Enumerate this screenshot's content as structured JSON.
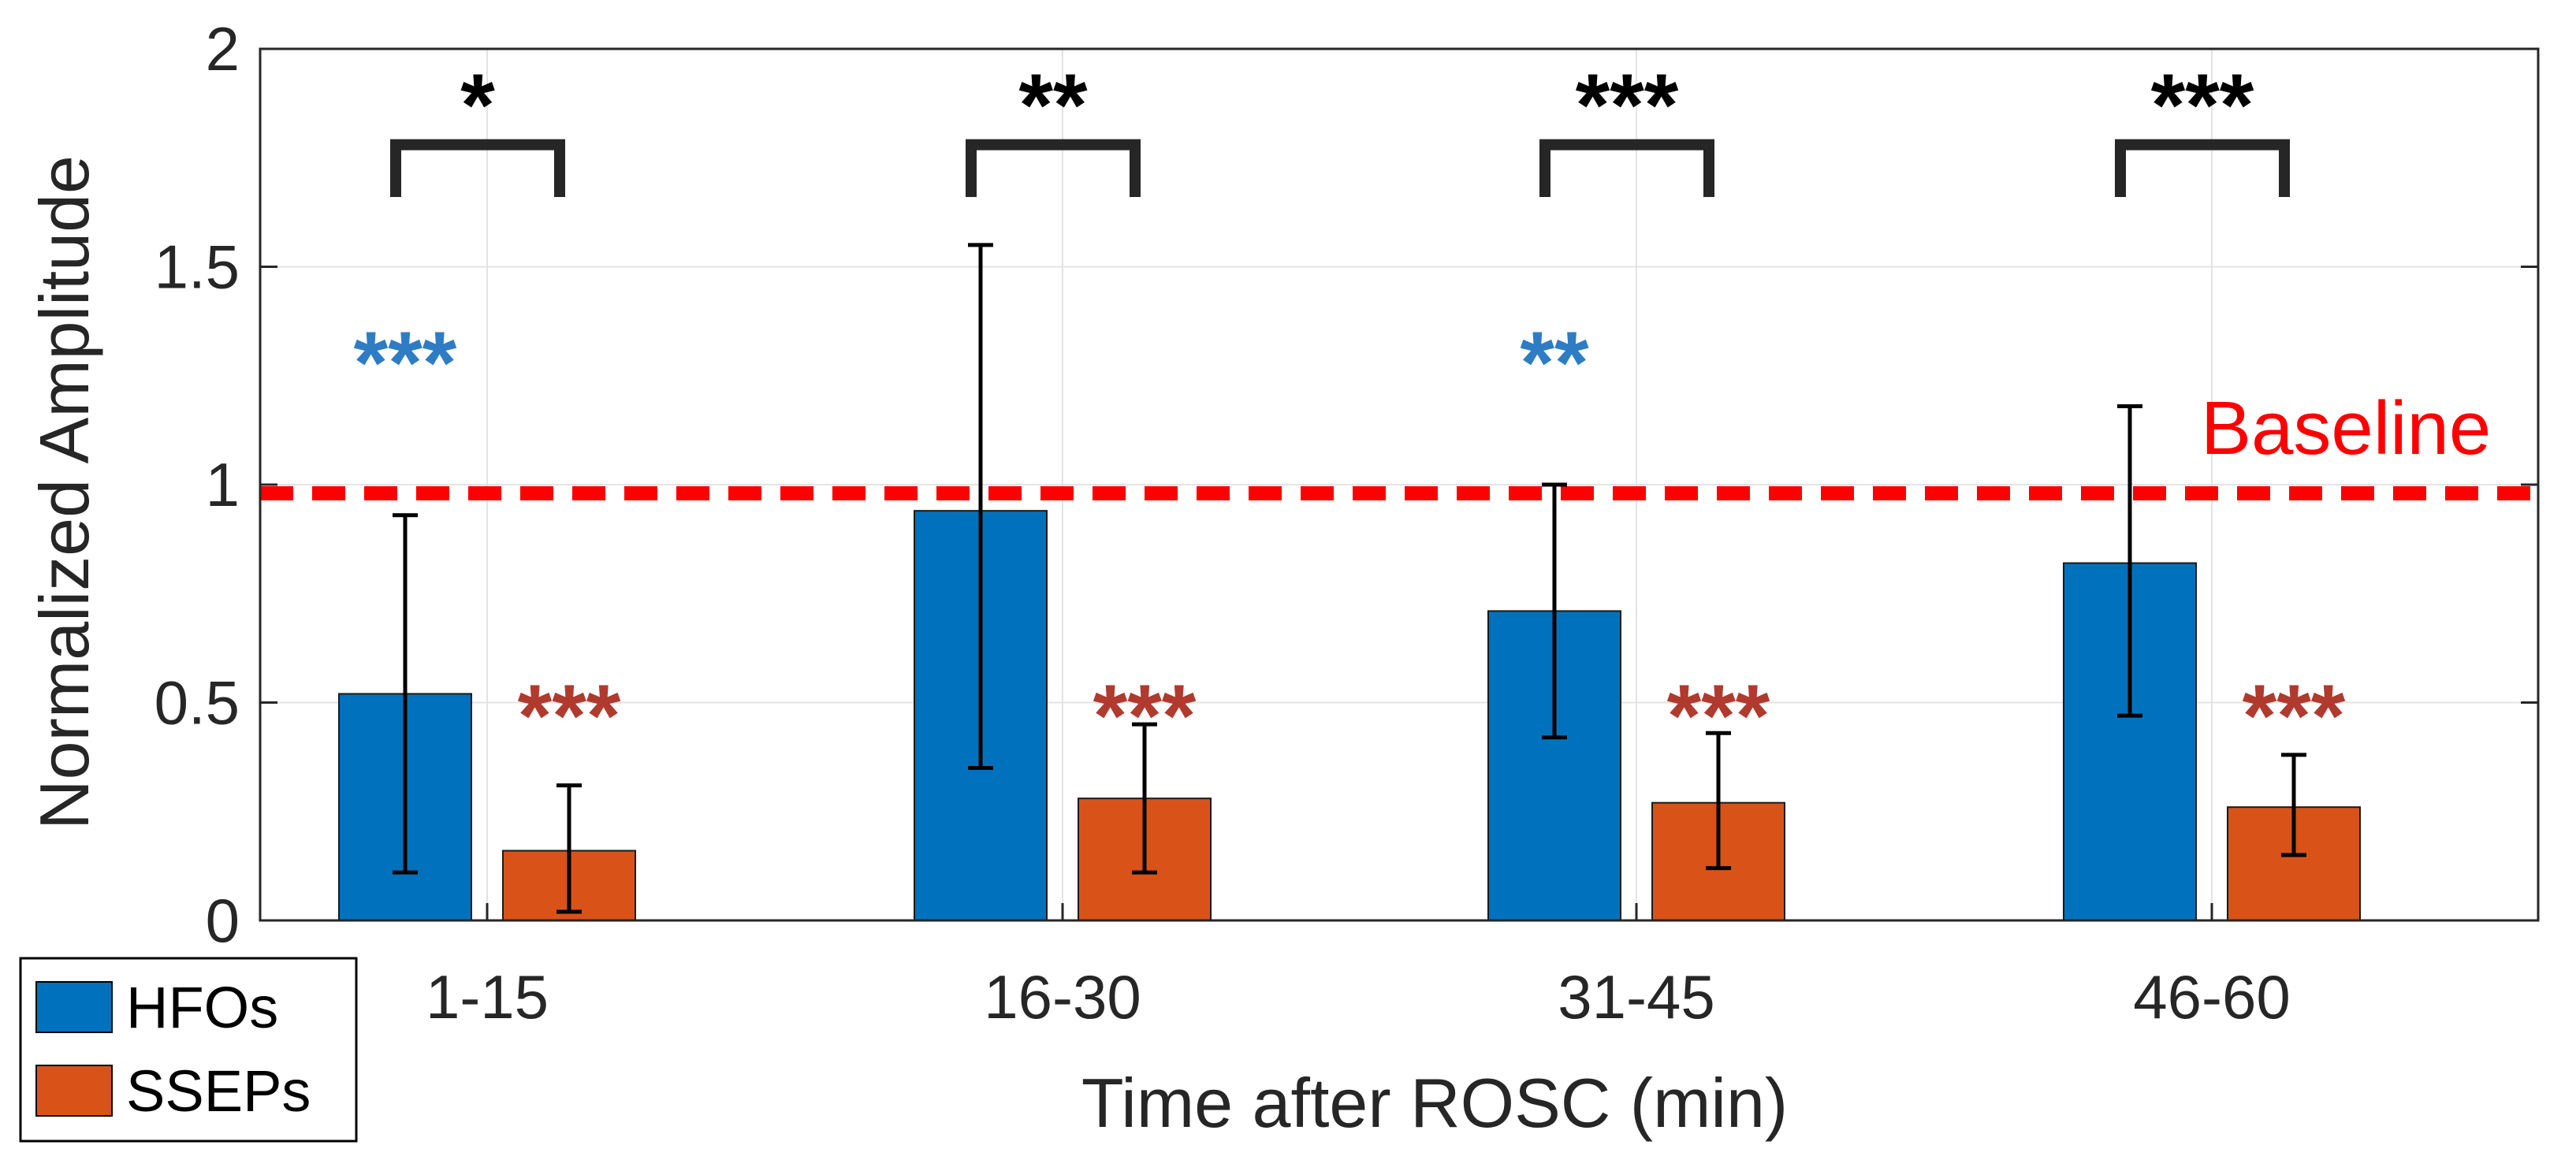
{
  "chart_data": {
    "type": "bar",
    "title": "",
    "xlabel": "Time after ROSC (min)",
    "ylabel": "Normalized Amplitude",
    "ylim": [
      0,
      2
    ],
    "yticks": [
      "0",
      "0.5",
      "1",
      "1.5",
      "2"
    ],
    "ytick_values": [
      0,
      0.5,
      1,
      1.5,
      2
    ],
    "grid": true,
    "categories": [
      "1-15",
      "16-30",
      "31-45",
      "46-60"
    ],
    "series": [
      {
        "name": "HFOs",
        "color": "#0072BD",
        "values": [
          0.52,
          0.94,
          0.71,
          0.82
        ],
        "err_low": [
          0.11,
          0.35,
          0.42,
          0.47
        ],
        "err_high": [
          0.93,
          1.55,
          1.0,
          1.18
        ],
        "significance": [
          "***",
          "",
          "**",
          ""
        ],
        "significance_color": "#2E7CC4"
      },
      {
        "name": "SSEPs",
        "color": "#D95319",
        "values": [
          0.16,
          0.28,
          0.27,
          0.26
        ],
        "err_low": [
          0.02,
          0.11,
          0.12,
          0.15
        ],
        "err_high": [
          0.31,
          0.45,
          0.43,
          0.38
        ],
        "significance": [
          "***",
          "***",
          "***",
          "***"
        ],
        "significance_color": "#B03A2E"
      }
    ],
    "between_group_significance": [
      "*",
      "**",
      "***",
      "***"
    ],
    "bracket_color": "#262626",
    "reference_line": {
      "value": 0.98,
      "label": "Baseline",
      "color": "#FF0000"
    },
    "legend_position": "bottom-left"
  }
}
